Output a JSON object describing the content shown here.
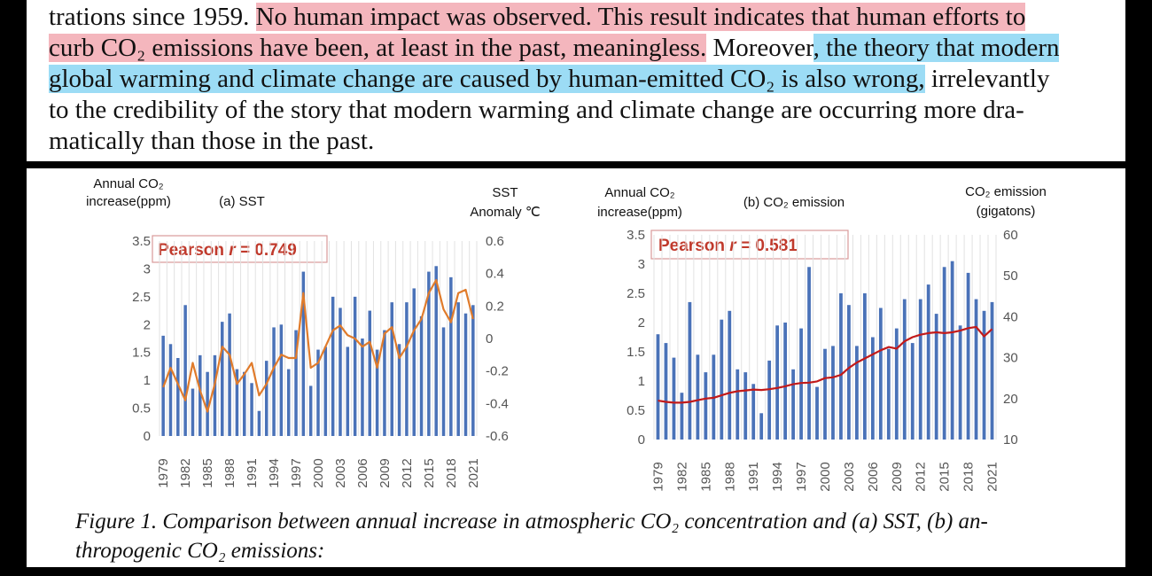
{
  "text": {
    "line1_a": "trations since 1959. ",
    "line1_b": "No human impact was observed. This result indicates that human efforts to",
    "line2_a": "curb CO₂ emissions have been, at least in the past, meaningless.",
    "line2_b": " Moreover",
    "line2_c": ", the theory that modern",
    "line3_a": "global warming and climate change are caused by human-emitted CO₂ is also wrong,",
    "line3_b": " irrelevantly",
    "line4": "to the credibility of the story that modern warming and climate change are occurring more dra-",
    "line5": "matically than those in the past."
  },
  "caption": {
    "line1": "Figure 1. Comparison between annual increase in atmospheric CO₂ concentration and (a) SST, (b) an-",
    "line2": "thropogenic CO₂ emissions:"
  },
  "colors": {
    "bar": "#4a72b8",
    "sst_line": "#e07b2b",
    "emission_line": "#c21a1a",
    "red_highlight": "#f4b6bd",
    "blue_highlight": "#9cdcf5"
  },
  "chart_data": [
    {
      "type": "bar",
      "panel_title": "(a) SST",
      "ylabel_left": [
        "Annual CO₂",
        "increase(ppm)"
      ],
      "ylabel_right": [
        "SST",
        "Anomaly ℃"
      ],
      "ylim": [
        0,
        3.5
      ],
      "y2lim": [
        -0.6,
        0.6
      ],
      "yticks": [
        "0",
        "0.5",
        "1",
        "1.5",
        "2",
        "2.5",
        "3",
        "3.5"
      ],
      "y2ticks": [
        "-0.6",
        "-0.4",
        "-0.2",
        "0",
        "0.2",
        "0.4",
        "0.6"
      ],
      "annotation": {
        "label": "Pearson ",
        "r": "r",
        "eq": " = 0.749"
      },
      "x_labels": [
        "1979",
        "1982",
        "1985",
        "1988",
        "1991",
        "1994",
        "1997",
        "2000",
        "2003",
        "2006",
        "2009",
        "2012",
        "2015",
        "2018",
        "2021"
      ],
      "years": [
        1979,
        1980,
        1981,
        1982,
        1983,
        1984,
        1985,
        1986,
        1987,
        1988,
        1989,
        1990,
        1991,
        1992,
        1993,
        1994,
        1995,
        1996,
        1997,
        1998,
        1999,
        2000,
        2001,
        2002,
        2003,
        2004,
        2005,
        2006,
        2007,
        2008,
        2009,
        2010,
        2011,
        2012,
        2013,
        2014,
        2015,
        2016,
        2017,
        2018,
        2019,
        2020,
        2021
      ],
      "series": [
        {
          "name": "Annual CO₂ increase",
          "kind": "bar",
          "axis": "left",
          "values": [
            1.8,
            1.65,
            1.4,
            2.35,
            0.85,
            1.45,
            1.15,
            1.45,
            2.05,
            2.2,
            1.2,
            1.15,
            0.95,
            0.45,
            1.35,
            1.95,
            2.0,
            1.2,
            1.9,
            2.95,
            0.9,
            1.55,
            1.6,
            2.5,
            2.3,
            1.6,
            2.5,
            1.75,
            2.25,
            1.55,
            1.9,
            2.4,
            1.65,
            2.4,
            2.65,
            2.15,
            2.95,
            3.05,
            1.95,
            2.85,
            2.4,
            2.2,
            2.35
          ]
        },
        {
          "name": "SST Anomaly",
          "kind": "line",
          "axis": "right",
          "values": [
            -0.3,
            -0.18,
            -0.28,
            -0.38,
            -0.15,
            -0.32,
            -0.45,
            -0.28,
            -0.05,
            -0.1,
            -0.28,
            -0.22,
            -0.15,
            -0.35,
            -0.28,
            -0.18,
            -0.1,
            -0.12,
            -0.12,
            0.28,
            -0.18,
            -0.15,
            -0.05,
            0.05,
            0.08,
            0.02,
            0.0,
            -0.05,
            -0.02,
            -0.18,
            0.03,
            0.07,
            -0.12,
            -0.05,
            0.05,
            0.12,
            0.28,
            0.36,
            0.18,
            0.1,
            0.28,
            0.3,
            0.12
          ]
        }
      ]
    },
    {
      "type": "bar",
      "panel_title": "(b) CO₂ emission",
      "ylabel_left": [
        "Annual CO₂",
        "increase(ppm)"
      ],
      "ylabel_right": [
        "CO₂ emission",
        "(gigatons)"
      ],
      "ylim": [
        0,
        3.5
      ],
      "y2lim": [
        10,
        60
      ],
      "yticks": [
        "0",
        "0.5",
        "1",
        "1.5",
        "2",
        "2.5",
        "3",
        "3.5"
      ],
      "y2ticks": [
        "10",
        "20",
        "30",
        "40",
        "50",
        "60"
      ],
      "annotation": {
        "label": "Pearson ",
        "r": "r",
        "eq": " = 0.581"
      },
      "x_labels": [
        "1979",
        "1982",
        "1985",
        "1988",
        "1991",
        "1994",
        "1997",
        "2000",
        "2003",
        "2006",
        "2009",
        "2012",
        "2015",
        "2018",
        "2021"
      ],
      "years": [
        1979,
        1980,
        1981,
        1982,
        1983,
        1984,
        1985,
        1986,
        1987,
        1988,
        1989,
        1990,
        1991,
        1992,
        1993,
        1994,
        1995,
        1996,
        1997,
        1998,
        1999,
        2000,
        2001,
        2002,
        2003,
        2004,
        2005,
        2006,
        2007,
        2008,
        2009,
        2010,
        2011,
        2012,
        2013,
        2014,
        2015,
        2016,
        2017,
        2018,
        2019,
        2020,
        2021
      ],
      "series": [
        {
          "name": "Annual CO₂ increase",
          "kind": "bar",
          "axis": "left",
          "values": [
            1.8,
            1.65,
            1.4,
            0.8,
            2.35,
            1.45,
            1.15,
            1.45,
            2.05,
            2.2,
            1.2,
            1.15,
            0.95,
            0.45,
            1.35,
            1.95,
            2.0,
            1.2,
            1.9,
            2.95,
            0.9,
            1.55,
            1.6,
            2.5,
            2.3,
            1.6,
            2.5,
            1.75,
            2.25,
            1.55,
            1.9,
            2.4,
            1.65,
            2.4,
            2.65,
            2.15,
            2.95,
            3.05,
            1.95,
            2.85,
            2.4,
            2.2,
            2.35
          ]
        },
        {
          "name": "CO₂ emission",
          "kind": "line",
          "axis": "right",
          "values": [
            19.5,
            19.2,
            19.0,
            19.0,
            19.2,
            19.6,
            20.0,
            20.2,
            20.8,
            21.4,
            21.8,
            22.0,
            22.2,
            22.1,
            22.3,
            22.6,
            23.0,
            23.5,
            23.8,
            23.9,
            24.2,
            25.0,
            25.2,
            25.8,
            27.5,
            28.8,
            29.8,
            30.8,
            31.8,
            32.6,
            32.2,
            34.0,
            35.0,
            35.6,
            36.0,
            36.2,
            36.0,
            36.2,
            36.6,
            37.2,
            37.5,
            35.2,
            37.0
          ]
        }
      ]
    }
  ]
}
